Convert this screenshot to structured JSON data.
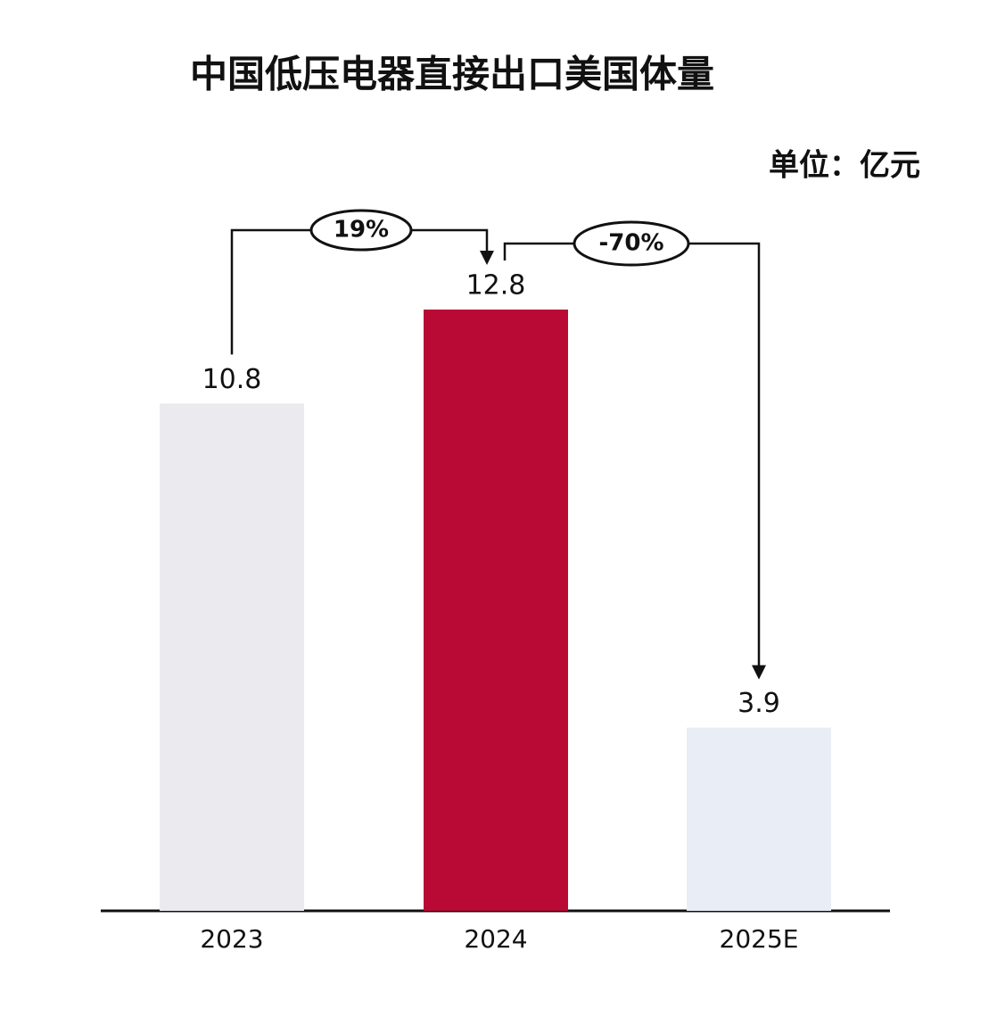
{
  "chart_data": {
    "type": "bar",
    "title": "中国低压电器直接出口美国体量",
    "subtitle": "单位：亿元",
    "categories": [
      "2023",
      "2024",
      "2025E"
    ],
    "values": [
      10.8,
      12.8,
      3.9
    ],
    "colors": [
      "#ebebef",
      "#b90a36",
      "#e9eef6"
    ],
    "annotations": [
      "19%",
      "-70%"
    ]
  }
}
